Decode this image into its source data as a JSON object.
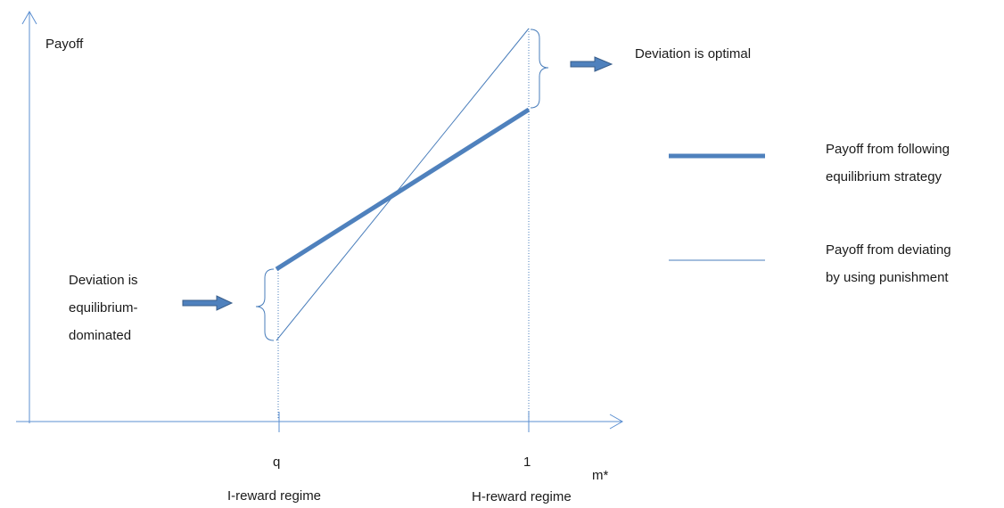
{
  "axes": {
    "y_label": "Payoff",
    "x_label": "m*"
  },
  "ticks": {
    "q_label": "q",
    "one_label": "1"
  },
  "regimes": {
    "left": "I-reward regime",
    "right": "H-reward regime"
  },
  "annotations": {
    "top": "Deviation is optimal",
    "bottom": [
      "Deviation is",
      "equilibrium-",
      "dominated"
    ]
  },
  "legend": {
    "equilibrium": [
      "Payoff from following",
      "equilibrium strategy"
    ],
    "deviating": [
      "Payoff from deviating",
      "by using punishment"
    ]
  },
  "colors": {
    "axis": "#5b8fd1",
    "thick_line": "#4f81bd",
    "thin_line": "#4a7ebb",
    "arrow_fill": "#4f81bd",
    "arrow_stroke": "#385d8a"
  }
}
